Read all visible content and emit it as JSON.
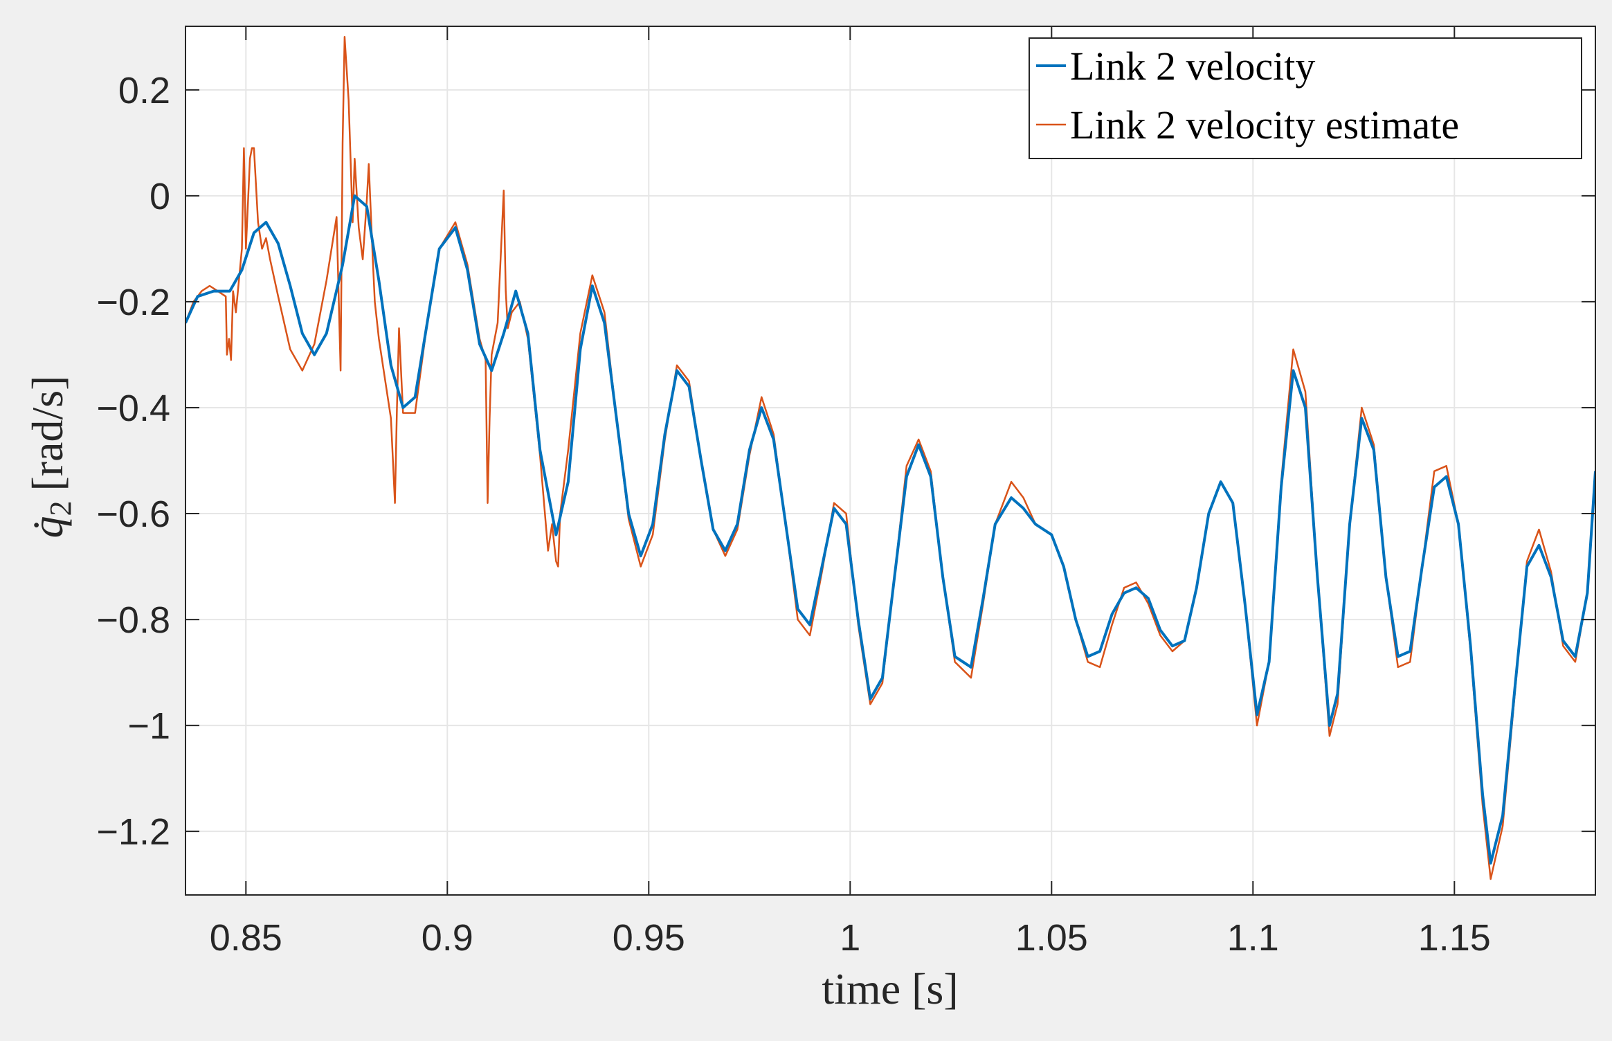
{
  "chart_data": {
    "type": "line",
    "title": "",
    "xlabel": "time [s]",
    "ylabel_symbol": "q̇",
    "ylabel_subscript": "2",
    "ylabel_unit": "[rad/s]",
    "xlim": [
      0.835,
      1.185
    ],
    "ylim": [
      -1.32,
      0.32
    ],
    "xticks": [
      0.85,
      0.9,
      0.95,
      1.0,
      1.05,
      1.1,
      1.15
    ],
    "xtick_labels": [
      "0.85",
      "0.9",
      "0.95",
      "1",
      "1.05",
      "1.1",
      "1.15"
    ],
    "yticks": [
      0.2,
      0,
      -0.2,
      -0.4,
      -0.6,
      -0.8,
      -1.0,
      -1.2
    ],
    "ytick_labels": [
      "0.2",
      "0",
      "−0.2",
      "−0.4",
      "−0.6",
      "−0.8",
      "−1",
      "−1.2"
    ],
    "grid": true,
    "legend_position": "top-right",
    "series": [
      {
        "name": "Link 2 velocity",
        "color": "#0072BD",
        "x": [
          0.835,
          0.838,
          0.842,
          0.846,
          0.849,
          0.852,
          0.855,
          0.858,
          0.861,
          0.864,
          0.867,
          0.87,
          0.874,
          0.877,
          0.88,
          0.883,
          0.886,
          0.889,
          0.892,
          0.895,
          0.898,
          0.902,
          0.905,
          0.908,
          0.911,
          0.914,
          0.917,
          0.92,
          0.923,
          0.927,
          0.93,
          0.933,
          0.936,
          0.939,
          0.942,
          0.945,
          0.948,
          0.951,
          0.954,
          0.957,
          0.96,
          0.963,
          0.966,
          0.969,
          0.972,
          0.975,
          0.978,
          0.981,
          0.984,
          0.987,
          0.99,
          0.993,
          0.996,
          0.999,
          1.002,
          1.005,
          1.008,
          1.011,
          1.014,
          1.017,
          1.02,
          1.023,
          1.026,
          1.03,
          1.033,
          1.036,
          1.04,
          1.043,
          1.046,
          1.05,
          1.053,
          1.056,
          1.059,
          1.062,
          1.065,
          1.068,
          1.071,
          1.074,
          1.077,
          1.08,
          1.083,
          1.086,
          1.089,
          1.092,
          1.095,
          1.098,
          1.101,
          1.104,
          1.107,
          1.11,
          1.113,
          1.116,
          1.119,
          1.121,
          1.124,
          1.127,
          1.13,
          1.133,
          1.136,
          1.139,
          1.142,
          1.145,
          1.148,
          1.151,
          1.154,
          1.157,
          1.159,
          1.162,
          1.165,
          1.168,
          1.171,
          1.174,
          1.177,
          1.18,
          1.183,
          1.185
        ],
        "values": [
          -0.24,
          -0.19,
          -0.18,
          -0.18,
          -0.14,
          -0.07,
          -0.05,
          -0.09,
          -0.17,
          -0.26,
          -0.3,
          -0.26,
          -0.13,
          0.0,
          -0.02,
          -0.16,
          -0.32,
          -0.4,
          -0.38,
          -0.24,
          -0.1,
          -0.06,
          -0.14,
          -0.28,
          -0.33,
          -0.26,
          -0.18,
          -0.26,
          -0.48,
          -0.64,
          -0.54,
          -0.29,
          -0.17,
          -0.24,
          -0.42,
          -0.6,
          -0.68,
          -0.62,
          -0.45,
          -0.33,
          -0.36,
          -0.5,
          -0.63,
          -0.67,
          -0.62,
          -0.48,
          -0.4,
          -0.46,
          -0.62,
          -0.78,
          -0.81,
          -0.7,
          -0.59,
          -0.62,
          -0.8,
          -0.95,
          -0.91,
          -0.72,
          -0.53,
          -0.47,
          -0.53,
          -0.72,
          -0.87,
          -0.89,
          -0.76,
          -0.62,
          -0.57,
          -0.59,
          -0.62,
          -0.64,
          -0.7,
          -0.8,
          -0.87,
          -0.86,
          -0.79,
          -0.75,
          -0.74,
          -0.76,
          -0.82,
          -0.85,
          -0.84,
          -0.74,
          -0.6,
          -0.54,
          -0.58,
          -0.77,
          -0.98,
          -0.88,
          -0.55,
          -0.33,
          -0.4,
          -0.72,
          -1.0,
          -0.94,
          -0.62,
          -0.42,
          -0.48,
          -0.72,
          -0.87,
          -0.86,
          -0.7,
          -0.55,
          -0.53,
          -0.62,
          -0.85,
          -1.13,
          -1.26,
          -1.17,
          -0.93,
          -0.7,
          -0.66,
          -0.72,
          -0.84,
          -0.87,
          -0.75,
          -0.52
        ]
      },
      {
        "name": "Link 2 velocity estimate",
        "color": "#D95319",
        "x": [
          0.835,
          0.837,
          0.839,
          0.841,
          0.843,
          0.845,
          0.8453,
          0.8458,
          0.8463,
          0.8468,
          0.8475,
          0.849,
          0.8495,
          0.85,
          0.851,
          0.8515,
          0.852,
          0.853,
          0.854,
          0.855,
          0.856,
          0.858,
          0.861,
          0.864,
          0.867,
          0.87,
          0.8725,
          0.8735,
          0.874,
          0.8745,
          0.8755,
          0.8765,
          0.877,
          0.878,
          0.879,
          0.88,
          0.8805,
          0.8815,
          0.882,
          0.883,
          0.886,
          0.887,
          0.8875,
          0.888,
          0.889,
          0.892,
          0.895,
          0.898,
          0.902,
          0.905,
          0.908,
          0.9095,
          0.91,
          0.9105,
          0.911,
          0.9125,
          0.914,
          0.9145,
          0.915,
          0.916,
          0.918,
          0.92,
          0.923,
          0.925,
          0.926,
          0.927,
          0.9275,
          0.928,
          0.93,
          0.933,
          0.936,
          0.939,
          0.942,
          0.945,
          0.948,
          0.951,
          0.954,
          0.957,
          0.96,
          0.963,
          0.966,
          0.969,
          0.972,
          0.975,
          0.978,
          0.981,
          0.984,
          0.987,
          0.99,
          0.993,
          0.996,
          0.999,
          1.002,
          1.005,
          1.008,
          1.011,
          1.014,
          1.017,
          1.02,
          1.023,
          1.026,
          1.03,
          1.033,
          1.036,
          1.04,
          1.043,
          1.046,
          1.05,
          1.053,
          1.056,
          1.059,
          1.062,
          1.065,
          1.068,
          1.071,
          1.074,
          1.077,
          1.08,
          1.083,
          1.086,
          1.089,
          1.092,
          1.095,
          1.098,
          1.101,
          1.104,
          1.107,
          1.11,
          1.113,
          1.116,
          1.119,
          1.121,
          1.124,
          1.127,
          1.13,
          1.133,
          1.136,
          1.139,
          1.142,
          1.145,
          1.148,
          1.151,
          1.154,
          1.157,
          1.159,
          1.162,
          1.165,
          1.168,
          1.171,
          1.174,
          1.177,
          1.18,
          1.183,
          1.185
        ],
        "values": [
          -0.24,
          -0.2,
          -0.18,
          -0.17,
          -0.18,
          -0.19,
          -0.3,
          -0.27,
          -0.31,
          -0.18,
          -0.22,
          -0.1,
          0.09,
          -0.1,
          0.07,
          0.09,
          0.09,
          -0.05,
          -0.1,
          -0.08,
          -0.12,
          -0.19,
          -0.29,
          -0.33,
          -0.28,
          -0.16,
          -0.04,
          -0.33,
          0.1,
          0.3,
          0.18,
          -0.05,
          0.07,
          -0.06,
          -0.12,
          -0.01,
          0.06,
          -0.12,
          -0.2,
          -0.27,
          -0.42,
          -0.58,
          -0.4,
          -0.25,
          -0.41,
          -0.41,
          -0.24,
          -0.1,
          -0.05,
          -0.13,
          -0.27,
          -0.31,
          -0.58,
          -0.42,
          -0.3,
          -0.24,
          0.01,
          -0.18,
          -0.25,
          -0.22,
          -0.2,
          -0.27,
          -0.49,
          -0.67,
          -0.62,
          -0.69,
          -0.7,
          -0.6,
          -0.48,
          -0.26,
          -0.15,
          -0.22,
          -0.42,
          -0.61,
          -0.7,
          -0.64,
          -0.46,
          -0.32,
          -0.35,
          -0.5,
          -0.63,
          -0.68,
          -0.63,
          -0.49,
          -0.38,
          -0.45,
          -0.62,
          -0.8,
          -0.83,
          -0.71,
          -0.58,
          -0.6,
          -0.81,
          -0.96,
          -0.92,
          -0.72,
          -0.51,
          -0.46,
          -0.52,
          -0.72,
          -0.88,
          -0.91,
          -0.77,
          -0.62,
          -0.54,
          -0.57,
          -0.62,
          -0.64,
          -0.7,
          -0.8,
          -0.88,
          -0.89,
          -0.81,
          -0.74,
          -0.73,
          -0.77,
          -0.83,
          -0.86,
          -0.84,
          -0.74,
          -0.6,
          -0.54,
          -0.58,
          -0.77,
          -1.0,
          -0.88,
          -0.54,
          -0.29,
          -0.37,
          -0.72,
          -1.02,
          -0.96,
          -0.62,
          -0.4,
          -0.47,
          -0.72,
          -0.89,
          -0.88,
          -0.7,
          -0.52,
          -0.51,
          -0.62,
          -0.86,
          -1.15,
          -1.29,
          -1.19,
          -0.94,
          -0.69,
          -0.63,
          -0.71,
          -0.85,
          -0.88,
          -0.75,
          -0.52
        ]
      }
    ]
  }
}
